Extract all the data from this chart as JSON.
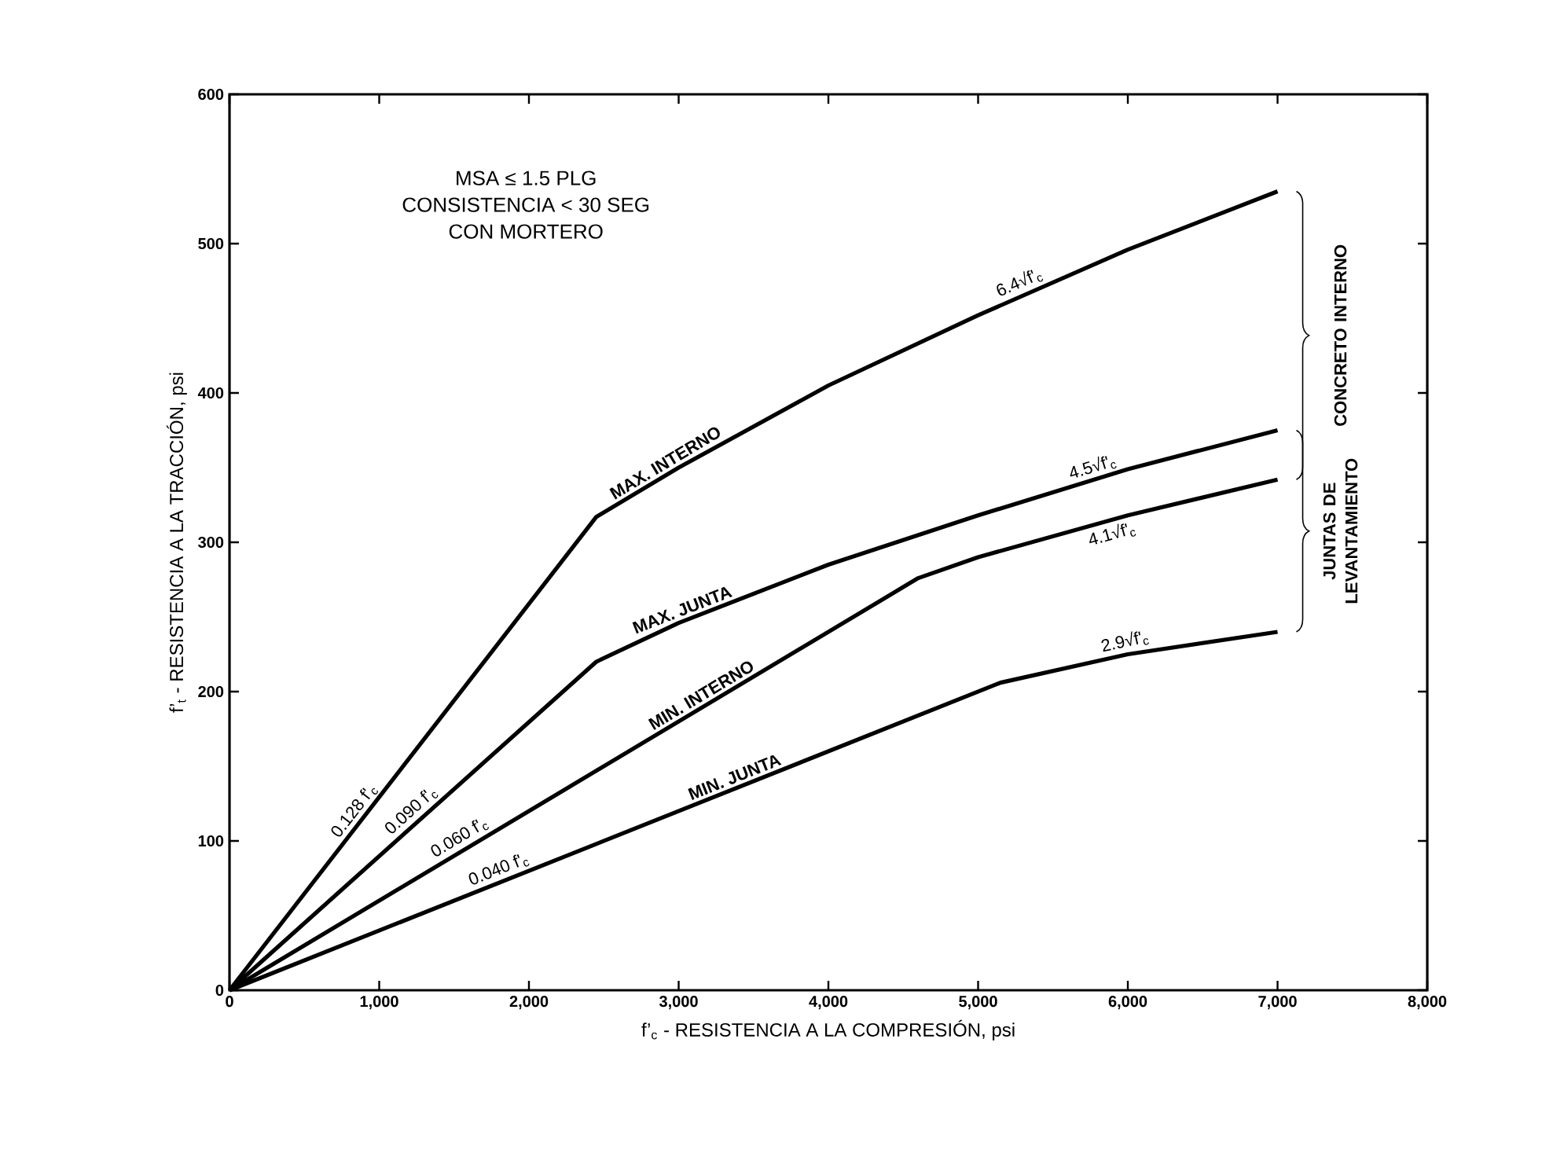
{
  "chart_data": {
    "type": "line",
    "xlabel": "f’$_{c}$  -  RESISTENCIA A LA COMPRESIÓN,  psi",
    "ylabel": "f’$_{t}$ -  RESISTENCIA A LA TRACCIÓN,  psi",
    "xlim": [
      0,
      8000
    ],
    "ylim": [
      0,
      600
    ],
    "xticks": [
      0,
      {
        "value": 1000,
        "label": "1,000"
      },
      {
        "value": 2000,
        "label": "2,000"
      },
      {
        "value": 3000,
        "label": "3,000"
      },
      {
        "value": 4000,
        "label": "4,000"
      },
      {
        "value": 5000,
        "label": "5,000"
      },
      {
        "value": 6000,
        "label": "6,000"
      },
      {
        "value": 7000,
        "label": "7,000"
      },
      {
        "value": 8000,
        "label": "8,000"
      }
    ],
    "yticks": [
      0,
      100,
      200,
      300,
      400,
      500,
      600
    ],
    "marker": "none",
    "line_style": "solid",
    "legend": false,
    "series": [
      {
        "name": "MAX. INTERNO",
        "color": "#000000",
        "x": [
          0,
          2450,
          3000,
          4000,
          5000,
          6000,
          7000
        ],
        "values": [
          0,
          317,
          350,
          405,
          452,
          496,
          535
        ]
      },
      {
        "name": "MAX. JUNTA",
        "color": "#000000",
        "x": [
          0,
          2450,
          3000,
          4000,
          5000,
          6000,
          7000
        ],
        "values": [
          0,
          220,
          246,
          285,
          318,
          349,
          375
        ]
      },
      {
        "name": "MIN. INTERNO",
        "color": "#000000",
        "x": [
          0,
          4600,
          5000,
          6000,
          7000
        ],
        "values": [
          0,
          276,
          290,
          318,
          342
        ]
      },
      {
        "name": "MIN. JUNTA",
        "color": "#000000",
        "x": [
          0,
          5150,
          6000,
          7000
        ],
        "values": [
          0,
          206,
          225,
          240
        ]
      }
    ],
    "annotations": [
      "MSA ≤ 1.5 PLG",
      "CONSISTENCIA < 30 SEG",
      "CON MORTERO",
      "CONCRETO INTERNO",
      "JUNTAS DE LEVANTAMIENTO",
      {
        "text": "0.128 f'$_{c}$",
        "x": 900,
        "y": 115
      },
      {
        "text": "0.090 f'$_{c}$",
        "x": 1270,
        "y": 114
      },
      {
        "text": "0.060 f'$_{c}$",
        "x": 1580,
        "y": 95
      },
      {
        "text": "0.040 f'$_{c}$",
        "x": 1830,
        "y": 73
      },
      {
        "text": "6.4√f'$_{c}$",
        "x": 5310,
        "y": 466
      },
      {
        "text": "4.5√f'$_{c}$",
        "x": 5790,
        "y": 342
      },
      {
        "text": "4.1√f'$_{c}$",
        "x": 5870,
        "y": 314
      },
      {
        "text": "2.9√f'$_{c}$",
        "x": 6000,
        "y": 225
      }
    ]
  }
}
